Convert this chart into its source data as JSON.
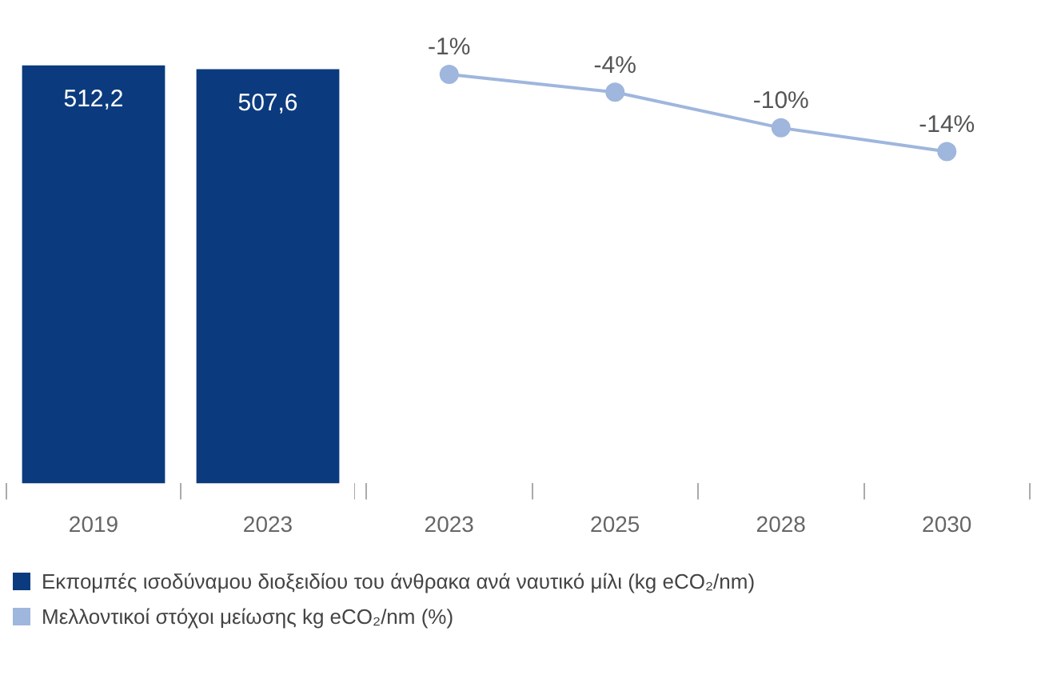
{
  "chart_data": [
    {
      "type": "bar",
      "categories": [
        "2019",
        "2023"
      ],
      "legend": "bottom right",
      "grid": false,
      "series": [
        {
          "name": "Εκπομπές ισοδύναμου διοξειδίου του άνθρακα ανά ναυτικό μίλι (kg eCO₂/nm)",
          "color": "#0b3b7e",
          "values": [
            512.2,
            507.6
          ],
          "value_labels": [
            "512,2",
            "507,6"
          ]
        }
      ]
    },
    {
      "type": "line",
      "categories": [
        "2023",
        "2025",
        "2028",
        "2030"
      ],
      "legend": "bottom left",
      "grid": false,
      "marker": "circle",
      "series": [
        {
          "name": "Μελλοντικοί στόχοι μείωσης kg eCO₂/nm (%)",
          "color": "#9fb6dd",
          "values": [
            -1,
            -4,
            -10,
            -14
          ],
          "value_labels": [
            "-1%",
            "-4%",
            "-10%",
            "-14%"
          ]
        }
      ]
    }
  ]
}
